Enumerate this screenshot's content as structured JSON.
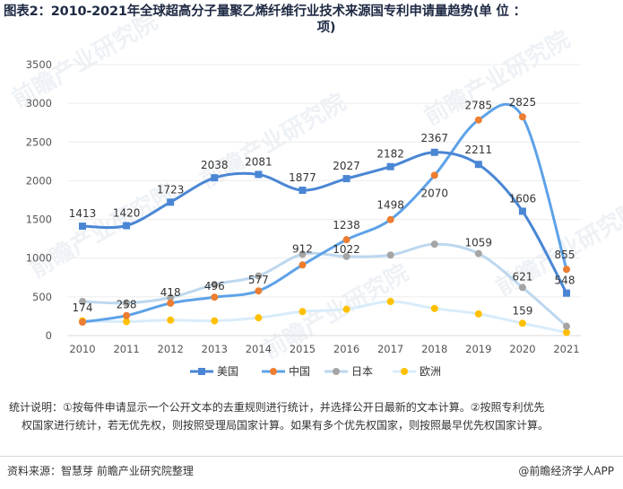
{
  "title": {
    "line1": "图表2：2010-2021年全球超高分子量聚乙烯纤维行业技术来源国专利申请量趋势(单 位 ：",
    "line2": "项)"
  },
  "chart_data": {
    "type": "line",
    "title": "图表2：2010-2021年全球超高分子量聚乙烯纤维行业技术来源国专利申请量趋势(单位：项)",
    "x": [
      "2010",
      "2011",
      "2012",
      "2013",
      "2014",
      "2015",
      "2016",
      "2017",
      "2018",
      "2019",
      "2020",
      "2021"
    ],
    "ylim": [
      0,
      3500
    ],
    "yticks": [
      0,
      500,
      1000,
      1500,
      2000,
      2500,
      3000,
      3500
    ],
    "legend_position": "bottom",
    "series": [
      {
        "name": "美国",
        "color": "#4a86d4",
        "marker": "square",
        "labeled": true,
        "values": [
          1413,
          1420,
          1723,
          2038,
          2081,
          1877,
          2027,
          2182,
          2367,
          2211,
          1606,
          548
        ]
      },
      {
        "name": "中国",
        "color": "#5da2e8",
        "marker": "circle",
        "marker_color": "#ed7d31",
        "labeled": true,
        "values": [
          174,
          258,
          418,
          496,
          577,
          912,
          1238,
          1498,
          2070,
          2785,
          2825,
          855
        ]
      },
      {
        "name": "日本",
        "color": "#bdd7ee",
        "marker": "circle",
        "marker_color": "#a5a5a5",
        "labeled": true,
        "values": [
          440,
          420,
          490,
          660,
          770,
          1050,
          1022,
          1040,
          1180,
          1059,
          621,
          120
        ]
      },
      {
        "name": "欧洲",
        "color": "#d9ecfa",
        "marker": "circle",
        "marker_color": "#ffc000",
        "labeled": true,
        "values": [
          190,
          180,
          200,
          190,
          230,
          310,
          340,
          440,
          350,
          280,
          159,
          40
        ]
      }
    ],
    "labels": [
      {
        "series": 0,
        "index": 0,
        "text": "1413"
      },
      {
        "series": 0,
        "index": 1,
        "text": "1420"
      },
      {
        "series": 0,
        "index": 2,
        "text": "1723"
      },
      {
        "series": 0,
        "index": 3,
        "text": "2038"
      },
      {
        "series": 0,
        "index": 4,
        "text": "2081"
      },
      {
        "series": 0,
        "index": 5,
        "text": "1877"
      },
      {
        "series": 0,
        "index": 6,
        "text": "2027"
      },
      {
        "series": 0,
        "index": 7,
        "text": "2182"
      },
      {
        "series": 0,
        "index": 8,
        "text": "2367"
      },
      {
        "series": 0,
        "index": 9,
        "text": "2211"
      },
      {
        "series": 0,
        "index": 10,
        "text": "1606"
      },
      {
        "series": 0,
        "index": 11,
        "text": "548"
      },
      {
        "series": 1,
        "index": 0,
        "text": "174"
      },
      {
        "series": 1,
        "index": 1,
        "text": "258"
      },
      {
        "series": 1,
        "index": 2,
        "text": "418"
      },
      {
        "series": 1,
        "index": 3,
        "text": "496"
      },
      {
        "series": 1,
        "index": 4,
        "text": "577"
      },
      {
        "series": 1,
        "index": 5,
        "text": "912"
      },
      {
        "series": 1,
        "index": 6,
        "text": "1238"
      },
      {
        "series": 1,
        "index": 7,
        "text": "1498"
      },
      {
        "series": 1,
        "index": 8,
        "text": "2070"
      },
      {
        "series": 1,
        "index": 9,
        "text": "2785"
      },
      {
        "series": 1,
        "index": 10,
        "text": "2825"
      },
      {
        "series": 1,
        "index": 11,
        "text": "855"
      },
      {
        "series": 2,
        "index": 6,
        "text": "1022"
      },
      {
        "series": 2,
        "index": 9,
        "text": "1059"
      },
      {
        "series": 2,
        "index": 10,
        "text": "621"
      },
      {
        "series": 3,
        "index": 10,
        "text": "159"
      }
    ]
  },
  "notes": {
    "line1": "统计说明：①按每件申请显示一个公开文本的去重规则进行统计，并选择公开日最新的文本计算。②按照专利优先",
    "line2": "权国家进行统计，若无优先权，则按照受理局国家计算。如果有多个优先权国家，则按照最早优先权国家计算。"
  },
  "source": "资料来源：智慧芽 前瞻产业研究院整理",
  "brand": "@前瞻经济学人APP",
  "watermark": "前瞻产业研究院"
}
